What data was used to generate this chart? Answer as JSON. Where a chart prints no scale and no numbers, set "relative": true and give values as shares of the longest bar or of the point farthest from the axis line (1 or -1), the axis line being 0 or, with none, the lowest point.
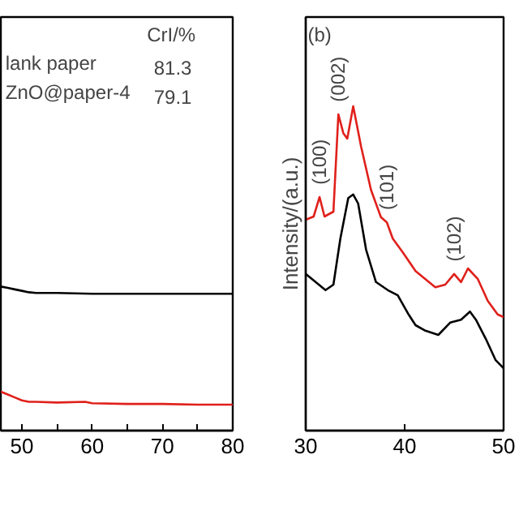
{
  "chart_data": [
    {
      "type": "line",
      "relative": true,
      "xlim": [
        47,
        80
      ],
      "xticks": [
        50,
        {
          "value": 55,
          "label": null
        },
        60,
        {
          "value": 65,
          "label": null
        },
        70,
        {
          "value": 75,
          "label": null
        },
        80
      ],
      "tick_labels": "x",
      "annotations": [
        "CrI/%",
        "lank paper",
        "81.3",
        "ZnO@paper-4",
        "79.1"
      ],
      "series": [
        {
          "color": "#000000",
          "x": [
            47,
            48,
            49,
            50,
            51,
            52,
            55,
            60,
            65,
            70,
            75,
            80
          ],
          "values": [
            1.0,
            0.99,
            0.98,
            0.97,
            0.96,
            0.955,
            0.955,
            0.95,
            0.95,
            0.95,
            0.95,
            0.95
          ]
        },
        {
          "color": "#e0201b",
          "x": [
            47,
            48,
            49,
            50,
            51,
            52,
            55,
            59,
            60,
            65,
            70,
            75,
            80
          ],
          "values": [
            0.27,
            0.25,
            0.23,
            0.21,
            0.2,
            0.2,
            0.195,
            0.2,
            0.19,
            0.185,
            0.185,
            0.18,
            0.18
          ]
        }
      ]
    },
    {
      "type": "line",
      "relative": true,
      "xlim": [
        30,
        50
      ],
      "xticks": [
        30,
        40,
        50
      ],
      "tick_labels": "x",
      "ylabel": "Intensity/(a.u.)",
      "annotations": [
        "(b)",
        {
          "text": "(100)",
          "x": 31.4,
          "y": 0.72
        },
        {
          "text": "(002)",
          "x": 33.3,
          "y": 0.975
        },
        {
          "text": "(101)",
          "x": 38.2,
          "y": 0.642
        },
        {
          "text": "(102)",
          "x": 45.0,
          "y": 0.483
        }
      ],
      "series": [
        {
          "color": "#e0201b",
          "x": [
            30,
            30.8,
            31.4,
            31.9,
            32.8,
            33.3,
            33.8,
            34.2,
            34.8,
            35.6,
            36.6,
            37.6,
            38.2,
            38.8,
            39.8,
            41.1,
            42.1,
            43.1,
            44.1,
            45.0,
            45.7,
            46.4,
            47.4,
            48.4,
            49.4,
            50.0
          ],
          "values": [
            0.65,
            0.66,
            0.72,
            0.66,
            0.675,
            0.975,
            0.917,
            0.9,
            1.0,
            0.875,
            0.742,
            0.658,
            0.642,
            0.592,
            0.55,
            0.492,
            0.467,
            0.442,
            0.45,
            0.483,
            0.458,
            0.5,
            0.467,
            0.4,
            0.358,
            0.35
          ]
        },
        {
          "color": "#000000",
          "x": [
            30,
            31.0,
            32.0,
            32.8,
            33.5,
            34.3,
            34.8,
            35.3,
            36.1,
            37.1,
            38.3,
            39.3,
            40.4,
            41.1,
            42.1,
            43.4,
            44.6,
            45.7,
            46.6,
            47.2,
            48.2,
            49.2,
            50.0
          ],
          "values": [
            0.483,
            0.458,
            0.433,
            0.45,
            0.592,
            0.717,
            0.728,
            0.7,
            0.558,
            0.458,
            0.433,
            0.417,
            0.358,
            0.325,
            0.308,
            0.295,
            0.333,
            0.342,
            0.367,
            0.342,
            0.283,
            0.217,
            0.192
          ]
        }
      ]
    }
  ]
}
